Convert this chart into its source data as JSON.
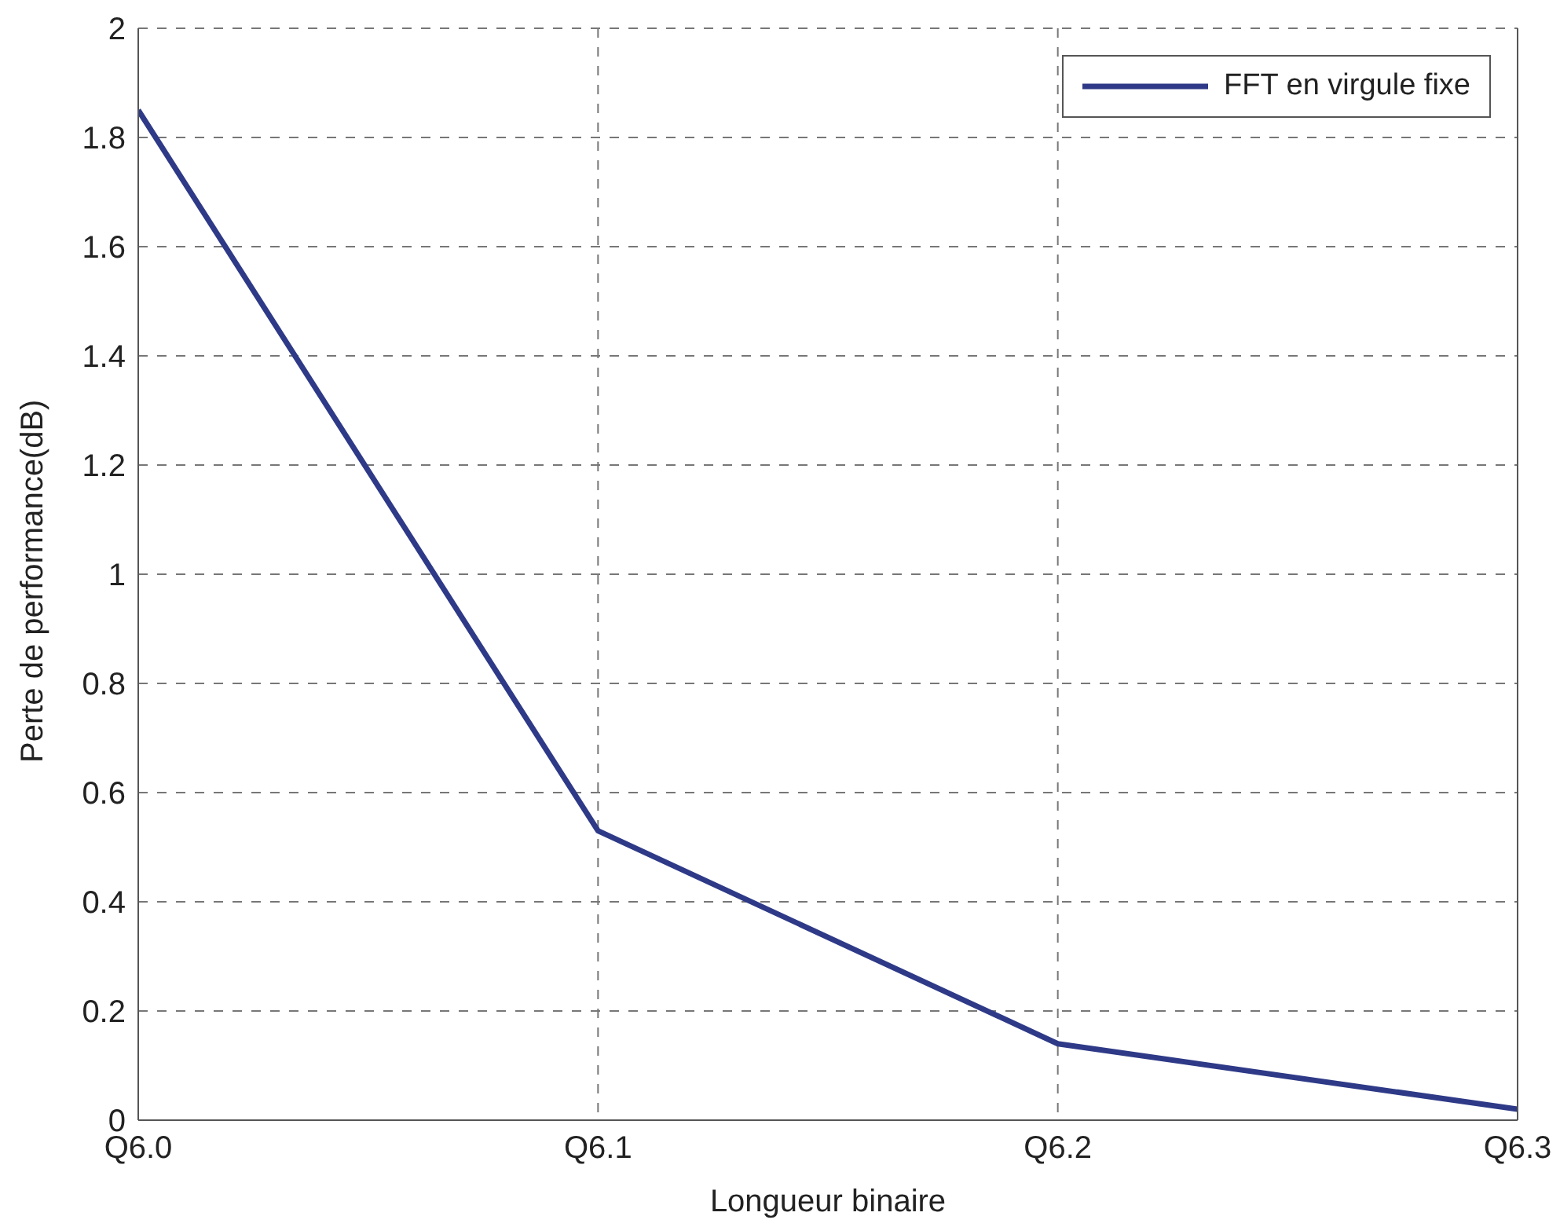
{
  "chart_data": {
    "type": "line",
    "xlabel": "Longueur binaire",
    "ylabel": "Perte de performance(dB)",
    "categories": [
      "Q6.0",
      "Q6.1",
      "Q6.2",
      "Q6.3"
    ],
    "series": [
      {
        "name": "FFT en virgule fixe",
        "color": "#2e3a87",
        "values": [
          1.85,
          0.53,
          0.14,
          0.02
        ]
      }
    ],
    "ylim": [
      0,
      2
    ],
    "yticks": [
      0,
      0.2,
      0.4,
      0.6,
      0.8,
      1,
      1.2,
      1.4,
      1.6,
      1.8,
      2
    ],
    "grid": true,
    "legend": "top right",
    "marker": "none",
    "line_style": "solid"
  }
}
